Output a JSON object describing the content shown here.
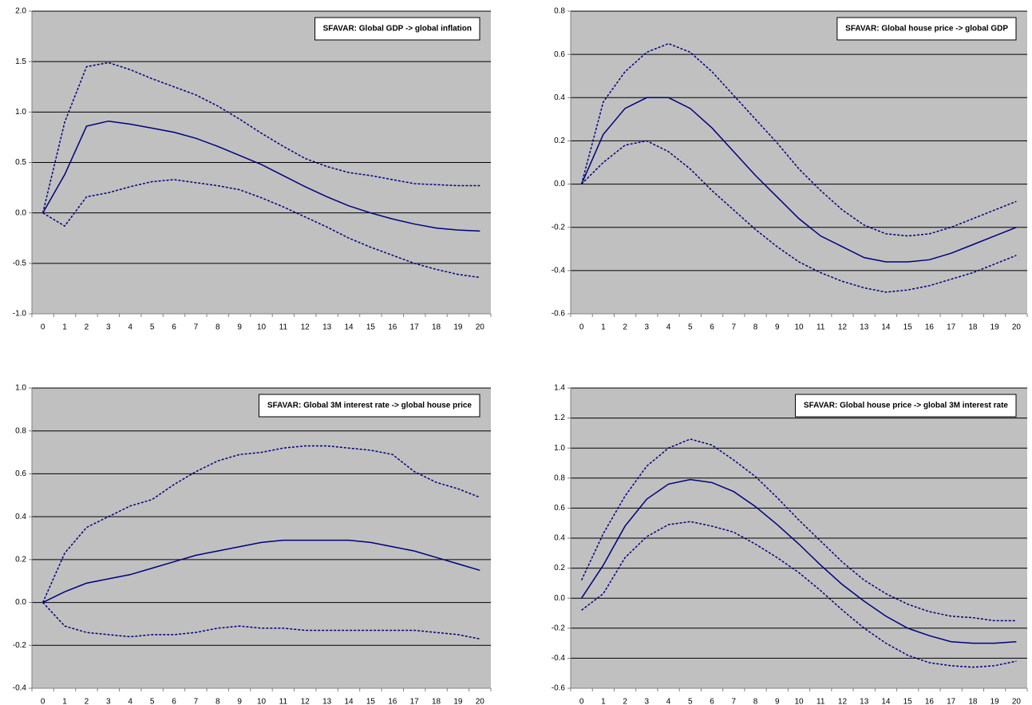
{
  "chart_data": [
    {
      "type": "line",
      "title": "SFAVAR: Global GDP -> global inflation",
      "categories": [
        "0",
        "1",
        "2",
        "3",
        "4",
        "5",
        "6",
        "7",
        "8",
        "9",
        "10",
        "11",
        "12",
        "13",
        "14",
        "15",
        "16",
        "17",
        "18",
        "19",
        "20"
      ],
      "series": [
        {
          "color": "#000080",
          "style": "solid",
          "values": [
            0,
            0.38,
            0.86,
            0.91,
            0.88,
            0.84,
            0.8,
            0.74,
            0.66,
            0.57,
            0.48,
            0.37,
            0.26,
            0.16,
            0.07,
            0.0,
            -0.06,
            -0.11,
            -0.15,
            -0.17,
            -0.18
          ]
        },
        {
          "color": "#000080",
          "style": "dashed",
          "values": [
            0,
            0.9,
            1.45,
            1.49,
            1.42,
            1.33,
            1.25,
            1.17,
            1.06,
            0.93,
            0.79,
            0.66,
            0.54,
            0.46,
            0.4,
            0.37,
            0.33,
            0.29,
            0.28,
            0.27,
            0.27
          ]
        },
        {
          "color": "#000080",
          "style": "dashed",
          "values": [
            0,
            -0.13,
            0.16,
            0.2,
            0.26,
            0.31,
            0.33,
            0.3,
            0.27,
            0.23,
            0.15,
            0.06,
            -0.04,
            -0.14,
            -0.25,
            -0.34,
            -0.42,
            -0.5,
            -0.56,
            -0.61,
            -0.64
          ]
        }
      ],
      "ylim": [
        -1,
        2
      ],
      "yticks": [
        {
          "value": -1,
          "label": "-1.0"
        },
        {
          "value": -0.5,
          "label": "-0.5"
        },
        {
          "value": 0,
          "label": "0.0"
        },
        {
          "value": 0.5,
          "label": "0.5"
        },
        {
          "value": 1,
          "label": "1.0"
        },
        {
          "value": 1.5,
          "label": "1.5"
        },
        {
          "value": 2,
          "label": "2.0"
        }
      ],
      "grid": true
    },
    {
      "type": "line",
      "title": "SFAVAR: Global house price -> global GDP",
      "categories": [
        "0",
        "1",
        "2",
        "3",
        "4",
        "5",
        "6",
        "7",
        "8",
        "9",
        "10",
        "11",
        "12",
        "13",
        "14",
        "15",
        "16",
        "17",
        "18",
        "19",
        "20"
      ],
      "series": [
        {
          "color": "#000080",
          "style": "solid",
          "values": [
            0,
            0.23,
            0.35,
            0.4,
            0.4,
            0.35,
            0.26,
            0.15,
            0.04,
            -0.06,
            -0.16,
            -0.24,
            -0.29,
            -0.34,
            -0.36,
            -0.36,
            -0.35,
            -0.32,
            -0.28,
            -0.24,
            -0.2
          ]
        },
        {
          "color": "#000080",
          "style": "dashed",
          "values": [
            0,
            0.38,
            0.52,
            0.61,
            0.65,
            0.61,
            0.52,
            0.41,
            0.3,
            0.19,
            0.07,
            -0.03,
            -0.12,
            -0.19,
            -0.23,
            -0.24,
            -0.23,
            -0.2,
            -0.16,
            -0.12,
            -0.08
          ]
        },
        {
          "color": "#000080",
          "style": "dashed",
          "values": [
            0,
            0.1,
            0.18,
            0.2,
            0.15,
            0.07,
            -0.03,
            -0.12,
            -0.21,
            -0.29,
            -0.36,
            -0.41,
            -0.45,
            -0.48,
            -0.5,
            -0.49,
            -0.47,
            -0.44,
            -0.41,
            -0.37,
            -0.33
          ]
        }
      ],
      "ylim": [
        -0.6,
        0.8
      ],
      "yticks": [
        {
          "value": -0.6,
          "label": "-0.6"
        },
        {
          "value": -0.4,
          "label": "-0.4"
        },
        {
          "value": -0.2,
          "label": "-0.2"
        },
        {
          "value": 0,
          "label": "0.0"
        },
        {
          "value": 0.2,
          "label": "0.2"
        },
        {
          "value": 0.4,
          "label": "0.4"
        },
        {
          "value": 0.6,
          "label": "0.6"
        },
        {
          "value": 0.8,
          "label": "0.8"
        }
      ],
      "grid": true
    },
    {
      "type": "line",
      "title": "SFAVAR: Global 3M interest rate -> global house price",
      "categories": [
        "0",
        "1",
        "2",
        "3",
        "4",
        "5",
        "6",
        "7",
        "8",
        "9",
        "10",
        "11",
        "12",
        "13",
        "14",
        "15",
        "16",
        "17",
        "18",
        "19",
        "20"
      ],
      "series": [
        {
          "color": "#000080",
          "style": "solid",
          "values": [
            0,
            0.05,
            0.09,
            0.11,
            0.13,
            0.16,
            0.19,
            0.22,
            0.24,
            0.26,
            0.28,
            0.29,
            0.29,
            0.29,
            0.29,
            0.28,
            0.26,
            0.24,
            0.21,
            0.18,
            0.15
          ]
        },
        {
          "color": "#000080",
          "style": "dashed",
          "values": [
            0,
            0.23,
            0.35,
            0.4,
            0.45,
            0.48,
            0.55,
            0.61,
            0.66,
            0.69,
            0.7,
            0.72,
            0.73,
            0.73,
            0.72,
            0.71,
            0.69,
            0.61,
            0.56,
            0.53,
            0.49
          ]
        },
        {
          "color": "#000080",
          "style": "dashed",
          "values": [
            0,
            -0.11,
            -0.14,
            -0.15,
            -0.16,
            -0.15,
            -0.15,
            -0.14,
            -0.12,
            -0.11,
            -0.12,
            -0.12,
            -0.13,
            -0.13,
            -0.13,
            -0.13,
            -0.13,
            -0.13,
            -0.14,
            -0.15,
            -0.17
          ]
        }
      ],
      "ylim": [
        -0.4,
        1
      ],
      "yticks": [
        {
          "value": -0.4,
          "label": "-0.4"
        },
        {
          "value": -0.2,
          "label": "-0.2"
        },
        {
          "value": 0,
          "label": "0.0"
        },
        {
          "value": 0.2,
          "label": "0.2"
        },
        {
          "value": 0.4,
          "label": "0.4"
        },
        {
          "value": 0.6,
          "label": "0.6"
        },
        {
          "value": 0.8,
          "label": "0.8"
        },
        {
          "value": 1,
          "label": "1.0"
        }
      ],
      "grid": true
    },
    {
      "type": "line",
      "title": "SFAVAR: Global house price -> global 3M interest rate",
      "categories": [
        "0",
        "1",
        "2",
        "3",
        "4",
        "5",
        "6",
        "7",
        "8",
        "9",
        "10",
        "11",
        "12",
        "13",
        "14",
        "15",
        "16",
        "17",
        "18",
        "19",
        "20"
      ],
      "series": [
        {
          "color": "#000080",
          "style": "solid",
          "values": [
            0,
            0.22,
            0.48,
            0.66,
            0.76,
            0.79,
            0.77,
            0.71,
            0.61,
            0.49,
            0.36,
            0.22,
            0.09,
            -0.02,
            -0.12,
            -0.2,
            -0.25,
            -0.29,
            -0.3,
            -0.3,
            -0.29
          ]
        },
        {
          "color": "#000080",
          "style": "dashed",
          "values": [
            0.12,
            0.43,
            0.68,
            0.88,
            1.0,
            1.06,
            1.02,
            0.92,
            0.81,
            0.67,
            0.52,
            0.38,
            0.24,
            0.12,
            0.03,
            -0.04,
            -0.09,
            -0.12,
            -0.13,
            -0.15,
            -0.15
          ]
        },
        {
          "color": "#000080",
          "style": "dashed",
          "values": [
            -0.08,
            0.03,
            0.27,
            0.41,
            0.49,
            0.51,
            0.48,
            0.44,
            0.36,
            0.27,
            0.17,
            0.05,
            -0.08,
            -0.2,
            -0.3,
            -0.38,
            -0.43,
            -0.45,
            -0.46,
            -0.45,
            -0.42
          ]
        }
      ],
      "ylim": [
        -0.6,
        1.4
      ],
      "yticks": [
        {
          "value": -0.6,
          "label": "-0.6"
        },
        {
          "value": -0.4,
          "label": "-0.4"
        },
        {
          "value": -0.2,
          "label": "-0.2"
        },
        {
          "value": 0,
          "label": "0.0"
        },
        {
          "value": 0.2,
          "label": "0.2"
        },
        {
          "value": 0.4,
          "label": "0.4"
        },
        {
          "value": 0.6,
          "label": "0.6"
        },
        {
          "value": 0.8,
          "label": "0.8"
        },
        {
          "value": 1,
          "label": "1.0"
        },
        {
          "value": 1.2,
          "label": "1.2"
        },
        {
          "value": 1.4,
          "label": "1.4"
        }
      ],
      "grid": true
    }
  ]
}
